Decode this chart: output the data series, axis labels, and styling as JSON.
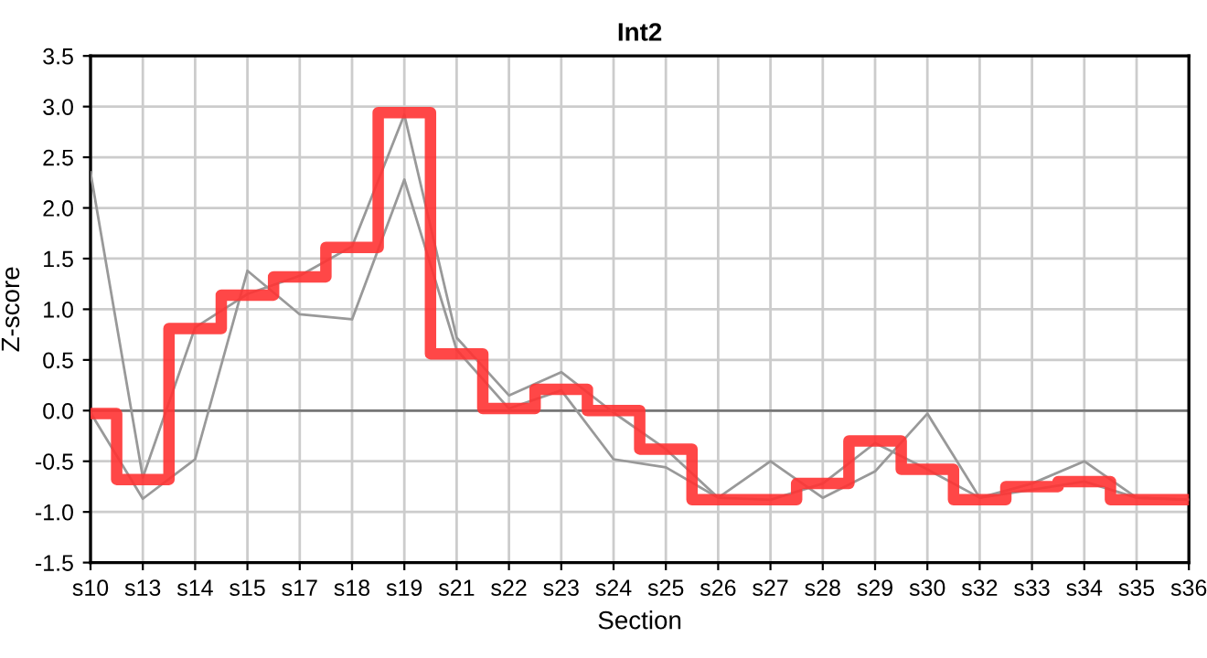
{
  "chart_data": {
    "type": "line",
    "title": "Int2",
    "xlabel": "Section",
    "ylabel": "Z-score",
    "categories": [
      "s10",
      "s13",
      "s14",
      "s15",
      "s17",
      "s18",
      "s19",
      "s21",
      "s22",
      "s23",
      "s24",
      "s25",
      "s26",
      "s27",
      "s28",
      "s29",
      "s30",
      "s32",
      "s33",
      "s34",
      "s35",
      "s36"
    ],
    "series": [
      {
        "color": "#999999",
        "values": [
          2.35,
          -0.66,
          0.82,
          1.15,
          1.33,
          1.62,
          2.92,
          0.72,
          0.15,
          0.38,
          -0.02,
          -0.38,
          -0.86,
          -0.5,
          -0.86,
          -0.6,
          -0.03,
          -0.86,
          -0.72,
          -0.5,
          -0.86,
          -0.88
        ]
      },
      {
        "color": "#999999",
        "values": [
          -0.02,
          -0.87,
          -0.48,
          1.38,
          0.95,
          0.9,
          2.28,
          0.6,
          0.02,
          0.2,
          -0.48,
          -0.56,
          -0.86,
          -0.88,
          -0.72,
          -0.32,
          -0.58,
          -0.86,
          -0.78,
          -0.7,
          -0.86,
          -0.88
        ]
      },
      {
        "type": "step",
        "color": "#ff3333",
        "values": [
          -0.03,
          -0.68,
          0.81,
          1.14,
          1.32,
          1.61,
          2.94,
          0.56,
          0.02,
          0.21,
          0.0,
          -0.38,
          -0.88,
          -0.88,
          -0.72,
          -0.3,
          -0.58,
          -0.88,
          -0.75,
          -0.7,
          -0.88,
          -0.88
        ]
      }
    ],
    "ylim": [
      -1.5,
      3.5
    ],
    "yticks": [
      {
        "value": -1.5,
        "label": "-1.5"
      },
      {
        "value": -1.0,
        "label": "-1.0"
      },
      {
        "value": -0.5,
        "label": "-0.5"
      },
      {
        "value": 0,
        "label": "0.0"
      },
      {
        "value": 0.5,
        "label": "0.5"
      },
      {
        "value": 1.0,
        "label": "1.0"
      },
      {
        "value": 1.5,
        "label": "1.5"
      },
      {
        "value": 2.0,
        "label": "2.0"
      },
      {
        "value": 2.5,
        "label": "2.5"
      },
      {
        "value": 3.0,
        "label": "3.0"
      },
      {
        "value": 3.5,
        "label": "3.5"
      }
    ],
    "ref_lines": [
      {
        "axis": "y",
        "value": 0,
        "color": "#777777"
      }
    ],
    "grid": true,
    "legend": false
  }
}
